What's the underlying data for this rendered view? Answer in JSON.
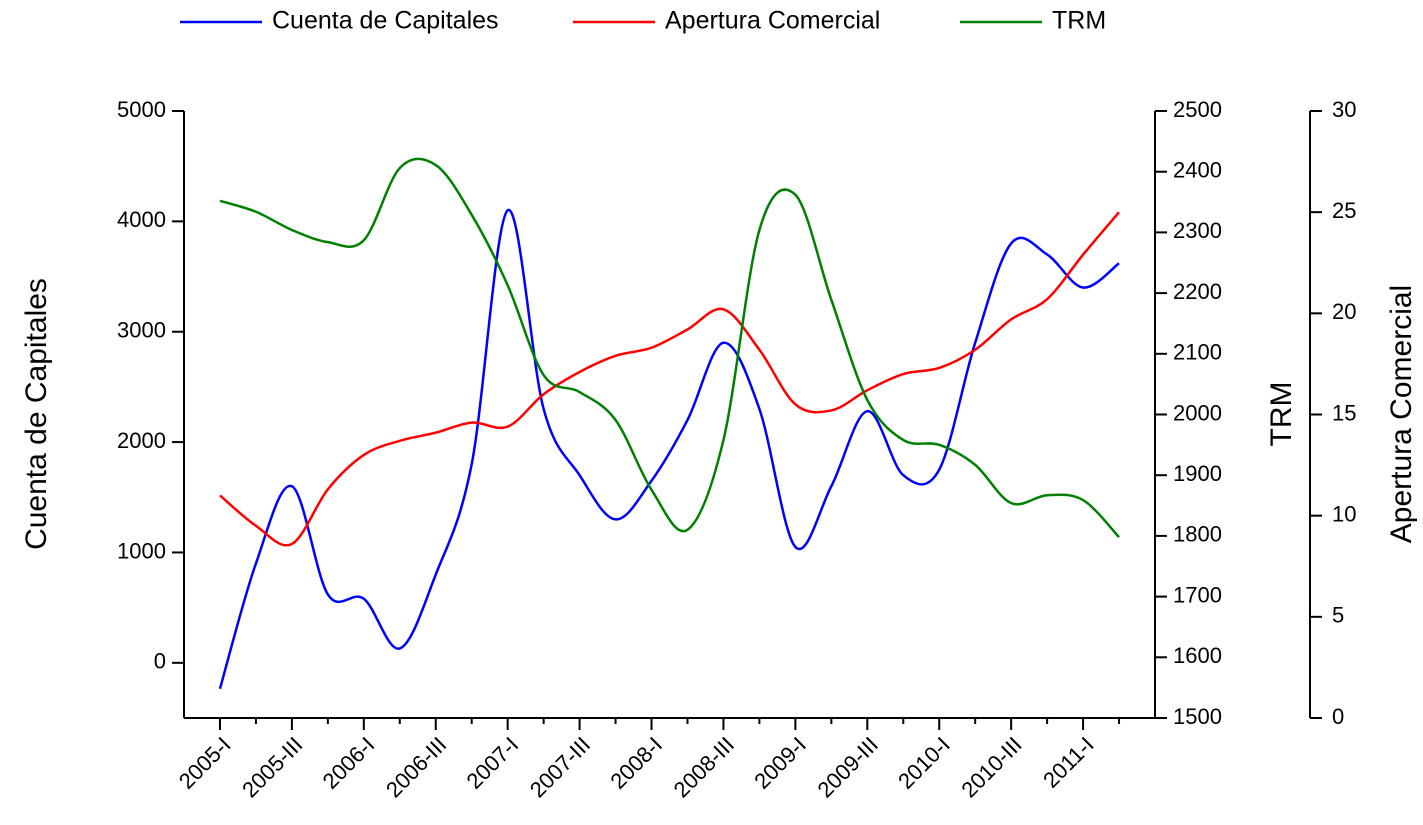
{
  "chart_data": {
    "type": "line",
    "categories": [
      "2005-I",
      null,
      "2005-III",
      null,
      "2006-I",
      null,
      "2006-III",
      null,
      "2007-I",
      null,
      "2007-III",
      null,
      "2008-I",
      null,
      "2008-III",
      null,
      "2009-I",
      null,
      "2009-III",
      null,
      "2010-I",
      null,
      "2010-III",
      null,
      "2011-I",
      null
    ],
    "ylabel": "Cuenta de Capitales",
    "y2label": "TRM",
    "y3label": "Apertura Comercial",
    "ylim": [
      -500,
      5000
    ],
    "yticks": [
      0,
      1000,
      2000,
      3000,
      4000,
      5000
    ],
    "y2lim": [
      1500,
      2500
    ],
    "y2ticks": [
      1500,
      1600,
      1700,
      1800,
      1900,
      2000,
      2100,
      2200,
      2300,
      2400,
      2500
    ],
    "y3lim": [
      0,
      30
    ],
    "y3ticks": [
      0,
      5,
      10,
      15,
      20,
      25,
      30
    ],
    "series": [
      {
        "name": "Cuenta de Capitales",
        "color": "#0000ff",
        "axis": "y",
        "values": [
          -235,
          900,
          1600,
          620,
          580,
          130,
          800,
          1800,
          4100,
          2300,
          1700,
          1300,
          1650,
          2200,
          2900,
          2300,
          1050,
          1600,
          2280,
          1700,
          1750,
          2900,
          3800,
          3700,
          3400,
          3620
        ]
      },
      {
        "name": "Apertura Comercial",
        "color": "#ff0000",
        "axis": "y3",
        "values": [
          11,
          9.5,
          8.6,
          11.3,
          13.0,
          13.7,
          14.1,
          14.6,
          14.4,
          16.0,
          17.1,
          17.9,
          18.3,
          19.2,
          20.2,
          18.2,
          15.5,
          15.2,
          16.2,
          17.0,
          17.3,
          18.2,
          19.7,
          20.7,
          22.9,
          25.0
        ]
      },
      {
        "name": "TRM",
        "color": "#008000",
        "axis": "y2",
        "values": [
          2352,
          2334,
          2304,
          2284,
          2287,
          2406,
          2411,
          2329,
          2213,
          2065,
          2037,
          1991,
          1876,
          1810,
          1958,
          2304,
          2362,
          2189,
          2024,
          1958,
          1950,
          1917,
          1854,
          1867,
          1859,
          1798
        ]
      }
    ]
  }
}
